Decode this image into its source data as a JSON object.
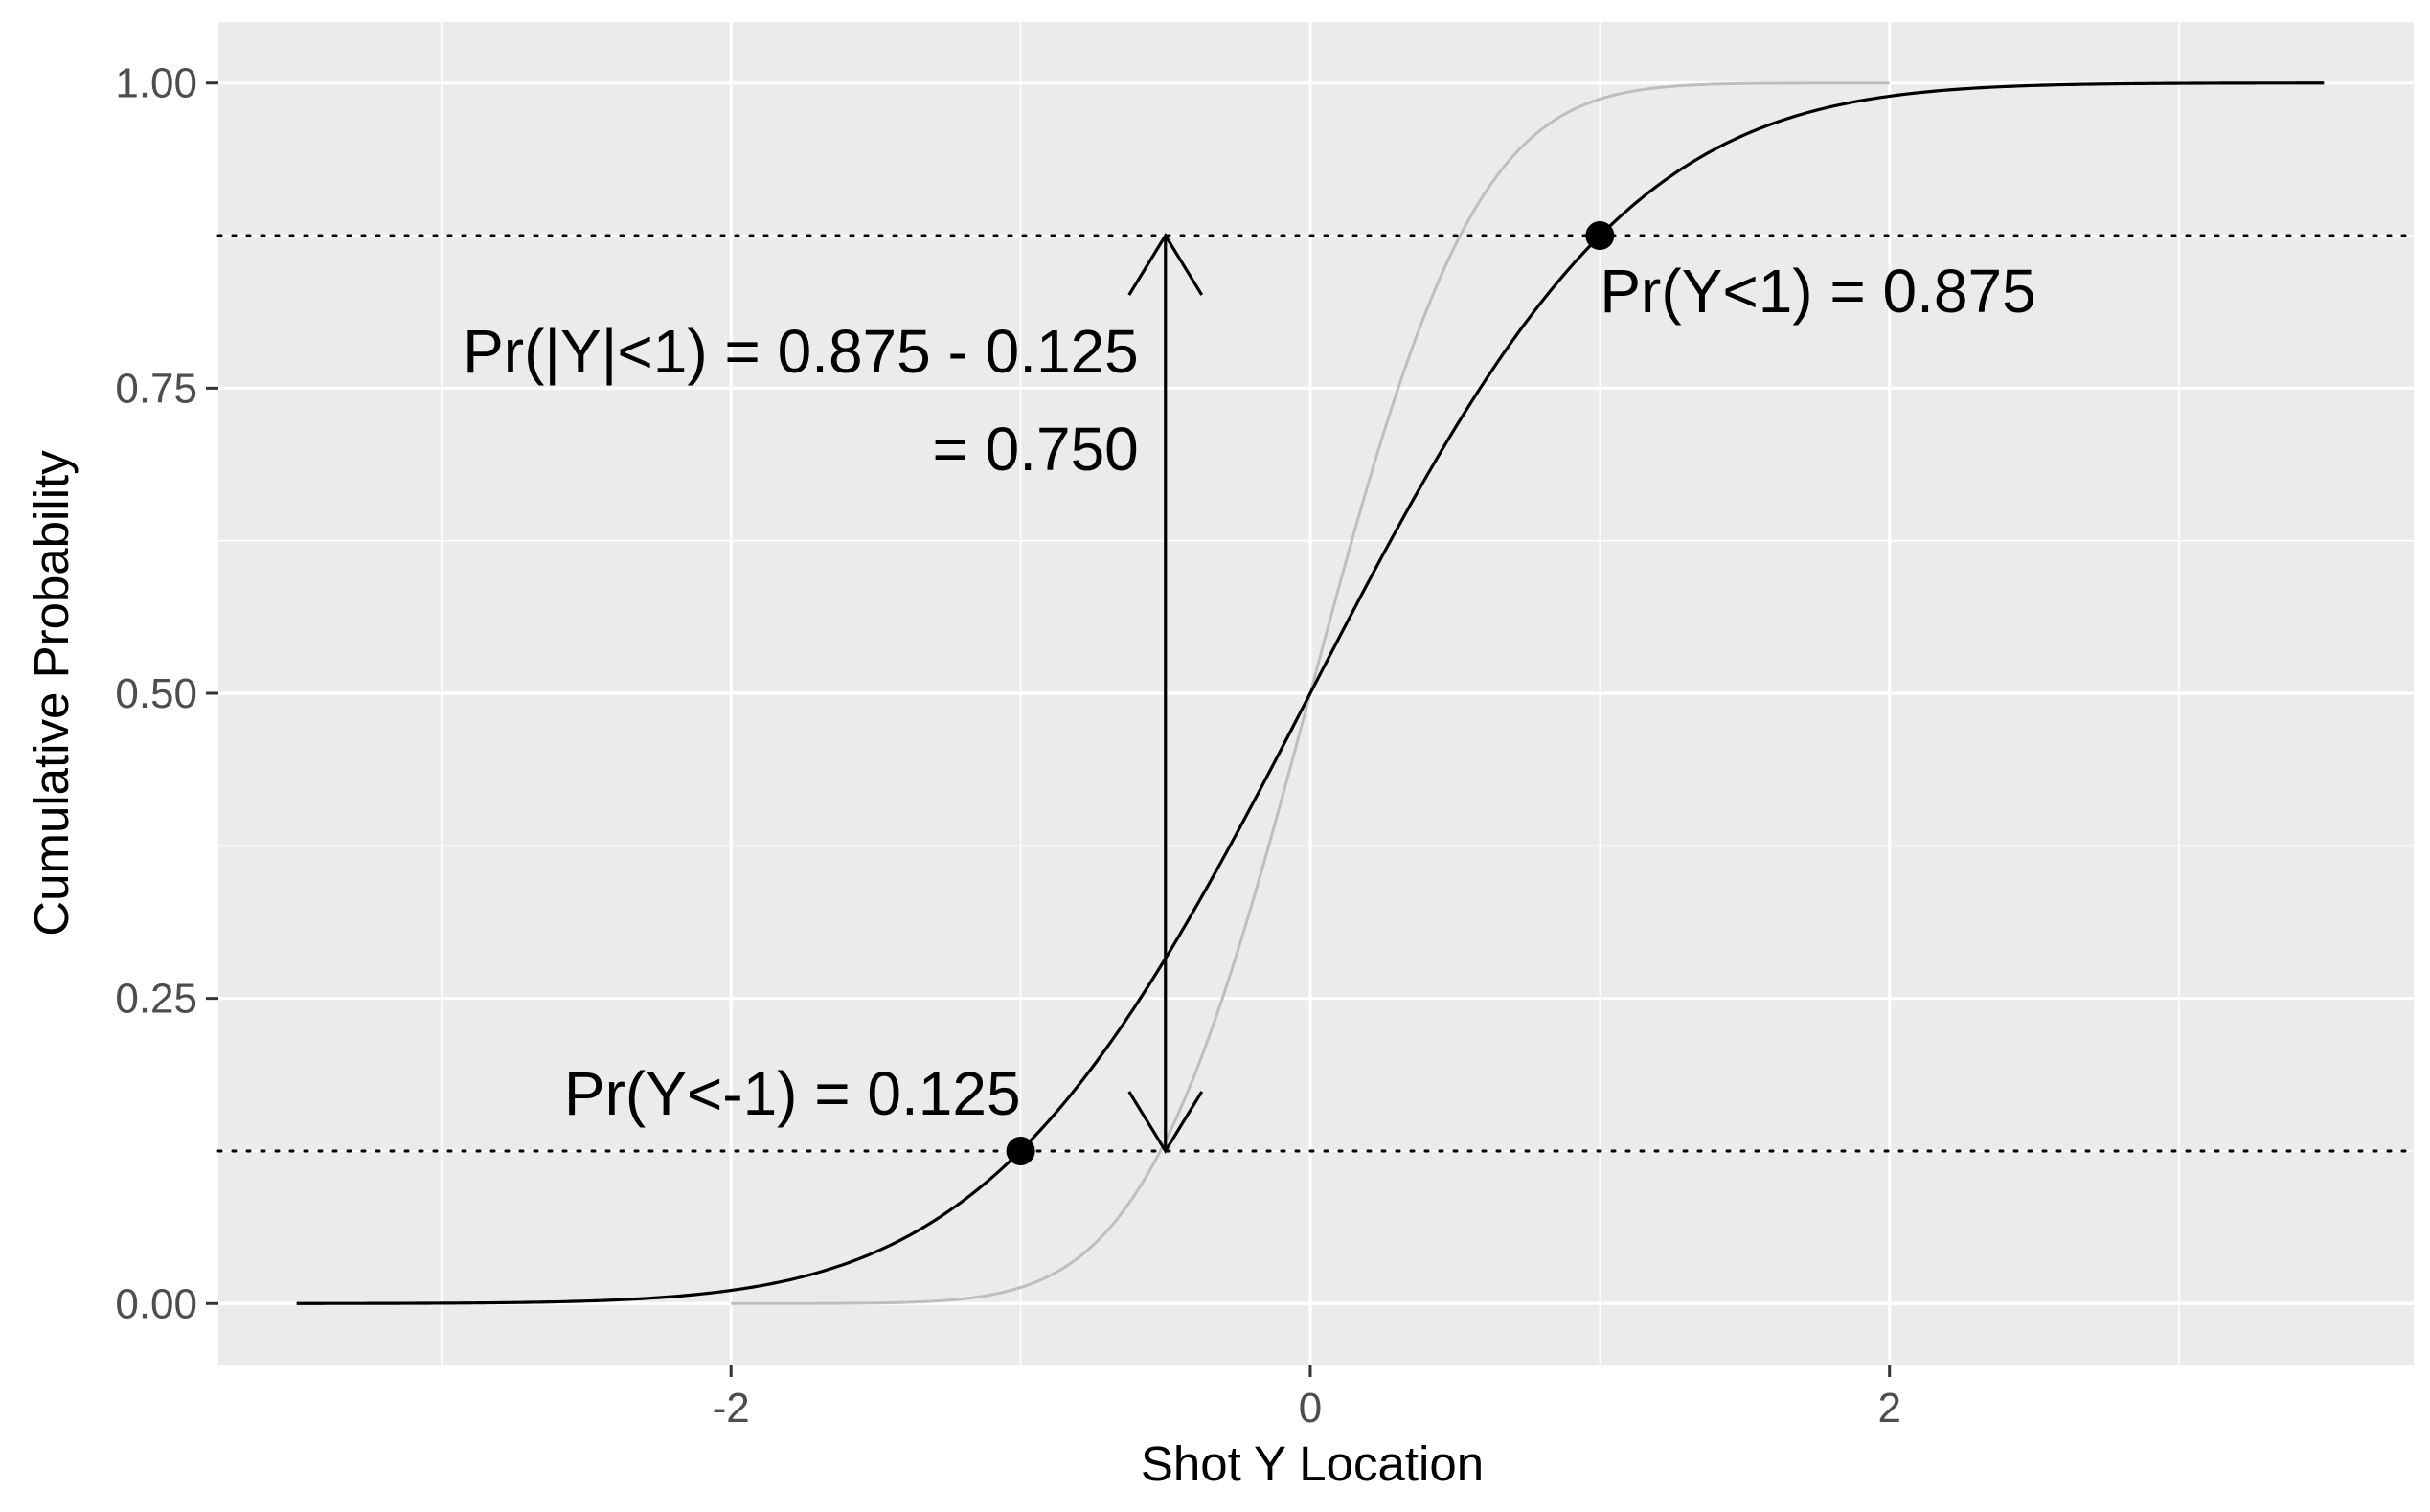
{
  "chart_data": {
    "type": "line",
    "xlabel": "Shot Y Location",
    "ylabel": "Cumulative Probability",
    "xlim": [
      -3.77,
      3.81
    ],
    "ylim": [
      -0.05,
      1.05
    ],
    "x_ticks": [
      -2,
      0,
      2
    ],
    "x_tick_labels": [
      "-2",
      "0",
      "2"
    ],
    "x_minor_ticks": [
      -3,
      -1,
      1,
      3
    ],
    "y_ticks": [
      0,
      0.25,
      0.5,
      0.75,
      1
    ],
    "y_tick_labels": [
      "0.00",
      "0.25",
      "0.50",
      "0.75",
      "1.00"
    ],
    "y_minor_ticks": [
      0.125,
      0.375,
      0.625,
      0.875
    ],
    "grid": true,
    "background": "#ebebeb",
    "series": [
      {
        "color": "#000000",
        "distribution": "normal cdf",
        "mean": 0,
        "sd": 0.87,
        "x_range": [
          -3.5,
          3.5
        ]
      },
      {
        "color": "#bebebe",
        "distribution": "normal cdf",
        "mean": 0,
        "sd": 0.45,
        "x_range": [
          -2.0,
          2.0
        ]
      }
    ],
    "hlines": [
      {
        "y": 0.125,
        "style": "dotted",
        "color": "#000000"
      },
      {
        "y": 0.875,
        "style": "dotted",
        "color": "#000000"
      }
    ],
    "points": [
      {
        "x": -1,
        "y": 0.125
      },
      {
        "x": 1,
        "y": 0.875
      }
    ],
    "arrow": {
      "x": -0.5,
      "y_from": 0.125,
      "y_to": 0.875,
      "both_ends": true
    },
    "annotations": [
      {
        "text": "Pr(Y<1) = 0.875",
        "x": 1,
        "y": 0.875
      },
      {
        "text": "Pr(Y<-1) = 0.125",
        "x": -1,
        "y": 0.125
      },
      {
        "text": "Pr(|Y|<1) = 0.875 - 0.125",
        "x": -0.5,
        "y": 0.78
      },
      {
        "text": "= 0.750",
        "x": -0.5,
        "y": 0.7
      }
    ]
  }
}
